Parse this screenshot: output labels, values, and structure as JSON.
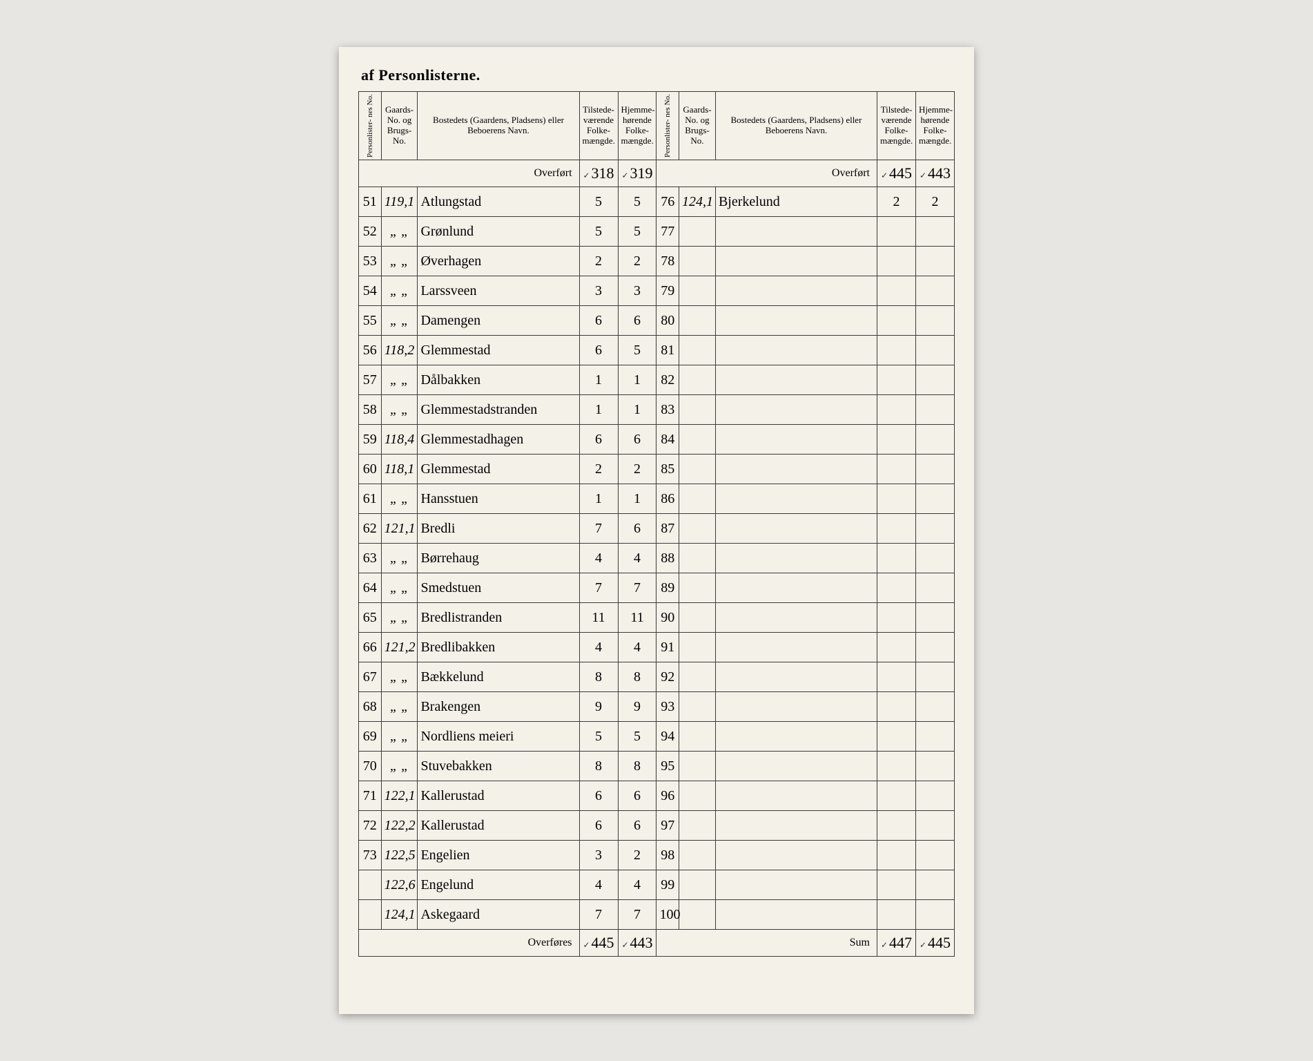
{
  "document": {
    "heading": "af Personlisterne.",
    "columns": {
      "personliste_no": "Personlister-\nnes No.",
      "gaards_no": "Gaards-\nNo.\nog\nBrugs-\nNo.",
      "bosted": "Bostedets (Gaardens, Pladsens) eller\nBeboerens Navn.",
      "tilstede": "Tilstede-\nværende\nFolke-\nmængde.",
      "hjemme": "Hjemme-\nhørende\nFolke-\nmængde."
    },
    "overfort_label": "Overført",
    "overfores_label": "Overføres",
    "sum_label": "Sum",
    "left": {
      "carried_forward": {
        "tilstede": "318",
        "hjemme": "319"
      },
      "rows": [
        {
          "no": "51",
          "gaard": "119,1",
          "name": "Atlungstad",
          "t": "5",
          "h": "5"
        },
        {
          "no": "52",
          "gaard": "„ „",
          "name": "Grønlund",
          "t": "5",
          "h": "5"
        },
        {
          "no": "53",
          "gaard": "„ „",
          "name": "Øverhagen",
          "t": "2",
          "h": "2"
        },
        {
          "no": "54",
          "gaard": "„ „",
          "name": "Larssveen",
          "t": "3",
          "h": "3"
        },
        {
          "no": "55",
          "gaard": "„ „",
          "name": "Damengen",
          "t": "6",
          "h": "6"
        },
        {
          "no": "56",
          "gaard": "118,2",
          "name": "Glemmestad",
          "t": "6",
          "h": "5"
        },
        {
          "no": "57",
          "gaard": "„ „",
          "name": "Dålbakken",
          "t": "1",
          "h": "1"
        },
        {
          "no": "58",
          "gaard": "„ „",
          "name": "Glemmestadstranden",
          "t": "1",
          "h": "1"
        },
        {
          "no": "59",
          "gaard": "118,4",
          "name": "Glemmestadhagen",
          "t": "6",
          "h": "6"
        },
        {
          "no": "60",
          "gaard": "118,1",
          "name": "Glemmestad",
          "t": "2",
          "h": "2"
        },
        {
          "no": "61",
          "gaard": "„ „",
          "name": "Hansstuen",
          "t": "1",
          "h": "1"
        },
        {
          "no": "62",
          "gaard": "121,1",
          "name": "Bredli",
          "t": "7",
          "h": "6"
        },
        {
          "no": "63",
          "gaard": "„ „",
          "name": "Børrehaug",
          "t": "4",
          "h": "4"
        },
        {
          "no": "64",
          "gaard": "„ „",
          "name": "Smedstuen",
          "t": "7",
          "h": "7"
        },
        {
          "no": "65",
          "gaard": "„ „",
          "name": "Bredlistranden",
          "t": "11",
          "h": "11"
        },
        {
          "no": "66",
          "gaard": "121,2",
          "name": "Bredlibakken",
          "t": "4",
          "h": "4"
        },
        {
          "no": "67",
          "gaard": "„ „",
          "name": "Bækkelund",
          "t": "8",
          "h": "8"
        },
        {
          "no": "68",
          "gaard": "„ „",
          "name": "Brakengen",
          "t": "9",
          "h": "9"
        },
        {
          "no": "69",
          "gaard": "„ „",
          "name": "Nordliens meieri",
          "t": "5",
          "h": "5"
        },
        {
          "no": "70",
          "gaard": "„ „",
          "name": "Stuvebakken",
          "t": "8",
          "h": "8"
        },
        {
          "no": "71",
          "gaard": "122,1",
          "name": "Kallerustad",
          "t": "6",
          "h": "6"
        },
        {
          "no": "72",
          "gaard": "122,2",
          "name": "Kallerustad",
          "t": "6",
          "h": "6"
        },
        {
          "no": "73",
          "gaard": "122,5",
          "name": "Engelien",
          "t": "3",
          "h": "2"
        },
        {
          "no": "",
          "gaard": "122,6",
          "name": "Engelund",
          "t": "4",
          "h": "4"
        },
        {
          "no": "",
          "gaard": "124,1",
          "name": "Askegaard",
          "t": "7",
          "h": "7"
        }
      ],
      "carried_over": {
        "tilstede": "445",
        "hjemme": "443"
      }
    },
    "right": {
      "carried_forward": {
        "tilstede": "445",
        "hjemme": "443"
      },
      "rows": [
        {
          "no": "76",
          "gaard": "124,1",
          "name": "Bjerkelund",
          "t": "2",
          "h": "2"
        },
        {
          "no": "77",
          "gaard": "",
          "name": "",
          "t": "",
          "h": ""
        },
        {
          "no": "78",
          "gaard": "",
          "name": "",
          "t": "",
          "h": ""
        },
        {
          "no": "79",
          "gaard": "",
          "name": "",
          "t": "",
          "h": ""
        },
        {
          "no": "80",
          "gaard": "",
          "name": "",
          "t": "",
          "h": ""
        },
        {
          "no": "81",
          "gaard": "",
          "name": "",
          "t": "",
          "h": ""
        },
        {
          "no": "82",
          "gaard": "",
          "name": "",
          "t": "",
          "h": ""
        },
        {
          "no": "83",
          "gaard": "",
          "name": "",
          "t": "",
          "h": ""
        },
        {
          "no": "84",
          "gaard": "",
          "name": "",
          "t": "",
          "h": ""
        },
        {
          "no": "85",
          "gaard": "",
          "name": "",
          "t": "",
          "h": ""
        },
        {
          "no": "86",
          "gaard": "",
          "name": "",
          "t": "",
          "h": ""
        },
        {
          "no": "87",
          "gaard": "",
          "name": "",
          "t": "",
          "h": ""
        },
        {
          "no": "88",
          "gaard": "",
          "name": "",
          "t": "",
          "h": ""
        },
        {
          "no": "89",
          "gaard": "",
          "name": "",
          "t": "",
          "h": ""
        },
        {
          "no": "90",
          "gaard": "",
          "name": "",
          "t": "",
          "h": ""
        },
        {
          "no": "91",
          "gaard": "",
          "name": "",
          "t": "",
          "h": ""
        },
        {
          "no": "92",
          "gaard": "",
          "name": "",
          "t": "",
          "h": ""
        },
        {
          "no": "93",
          "gaard": "",
          "name": "",
          "t": "",
          "h": ""
        },
        {
          "no": "94",
          "gaard": "",
          "name": "",
          "t": "",
          "h": ""
        },
        {
          "no": "95",
          "gaard": "",
          "name": "",
          "t": "",
          "h": ""
        },
        {
          "no": "96",
          "gaard": "",
          "name": "",
          "t": "",
          "h": ""
        },
        {
          "no": "97",
          "gaard": "",
          "name": "",
          "t": "",
          "h": ""
        },
        {
          "no": "98",
          "gaard": "",
          "name": "",
          "t": "",
          "h": ""
        },
        {
          "no": "99",
          "gaard": "",
          "name": "",
          "t": "",
          "h": ""
        },
        {
          "no": "100",
          "gaard": "",
          "name": "",
          "t": "",
          "h": ""
        }
      ],
      "sum": {
        "tilstede": "447",
        "hjemme": "445"
      }
    },
    "style": {
      "page_bg": "#e8e6e2",
      "sheet_bg": "#f4f1e9",
      "border_color": "#3a3a3a",
      "script_font": "Brush Script MT"
    }
  }
}
